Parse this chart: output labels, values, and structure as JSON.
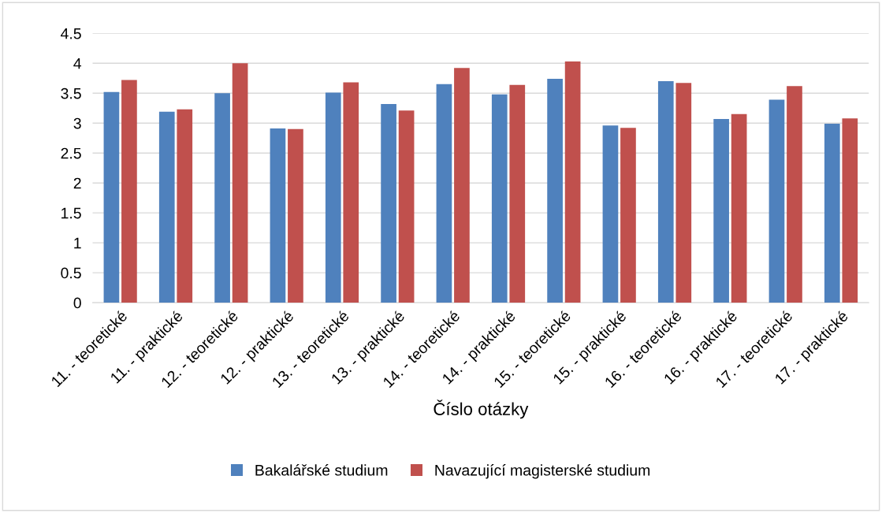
{
  "chart_data": {
    "type": "bar",
    "xlabel": "Číslo otázky",
    "categories": [
      "11. - teoretické",
      "11. - praktické",
      "12. - teoretické",
      "12. - praktické",
      "13. - teoretické",
      "13. - praktické",
      "14. - teoretické",
      "14. - praktické",
      "15. - teoretické",
      "15. - praktické",
      "16. - teoretické",
      "16. - praktické",
      "17. - teoretické",
      "17. - praktické"
    ],
    "series": [
      {
        "name": "Bakalářské studium",
        "color": "#4f81bd",
        "values": [
          3.52,
          3.19,
          3.5,
          2.91,
          3.51,
          3.32,
          3.65,
          3.48,
          3.74,
          2.96,
          3.7,
          3.07,
          3.39,
          2.99
        ]
      },
      {
        "name": "Navazující magisterské studium",
        "color": "#c0504d",
        "values": [
          3.72,
          3.23,
          4.0,
          2.9,
          3.68,
          3.21,
          3.92,
          3.64,
          4.03,
          2.92,
          3.67,
          3.15,
          3.62,
          3.08
        ]
      }
    ],
    "ylim": [
      0,
      4.5
    ],
    "yticks": [
      0,
      0.5,
      1,
      1.5,
      2,
      2.5,
      3,
      3.5,
      4,
      4.5
    ],
    "grid": "y",
    "legend": "bottom"
  }
}
